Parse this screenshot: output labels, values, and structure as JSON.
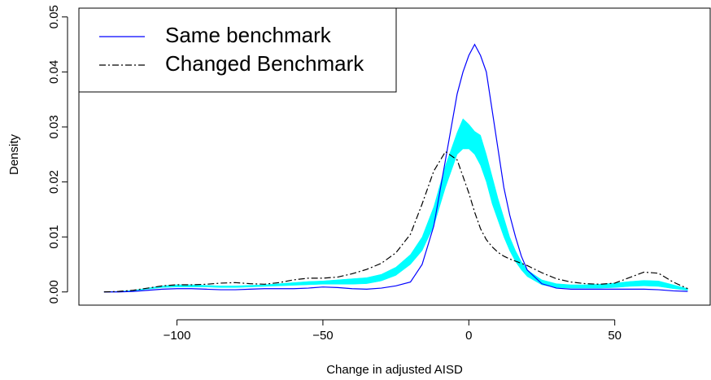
{
  "chart_data": {
    "type": "line",
    "x_label": "Change in adjusted AISD",
    "y_label": "Density",
    "x": [
      -125,
      -120,
      -115,
      -110,
      -105,
      -100,
      -95,
      -90,
      -85,
      -80,
      -75,
      -70,
      -65,
      -60,
      -55,
      -50,
      -45,
      -40,
      -35,
      -30,
      -25,
      -20,
      -16,
      -12,
      -8,
      -4,
      -2,
      0,
      2,
      4,
      6,
      8,
      10,
      12,
      14,
      16,
      18,
      20,
      25,
      30,
      35,
      40,
      45,
      50,
      55,
      60,
      65,
      70,
      75
    ],
    "series": [
      {
        "name": "Same benchmark",
        "color": "#0000ff",
        "dash": "solid",
        "values": [
          0,
          0,
          0.0001,
          0.0003,
          0.0005,
          0.0006,
          0.0006,
          0.0005,
          0.0004,
          0.0004,
          0.0005,
          0.0006,
          0.0006,
          0.0006,
          0.0007,
          0.0009,
          0.0008,
          0.0006,
          0.0005,
          0.0007,
          0.0011,
          0.0018,
          0.005,
          0.012,
          0.024,
          0.036,
          0.04,
          0.043,
          0.045,
          0.043,
          0.04,
          0.033,
          0.026,
          0.019,
          0.014,
          0.01,
          0.0065,
          0.004,
          0.0015,
          0.0007,
          0.0005,
          0.0005,
          0.0005,
          0.0005,
          0.0005,
          0.0005,
          0.0004,
          0.0002,
          0.0001
        ]
      },
      {
        "name": "Changed Benchmark",
        "color": "#000000",
        "dash": "dotdash",
        "values": [
          0,
          0.0001,
          0.0003,
          0.0007,
          0.0011,
          0.0013,
          0.0013,
          0.0014,
          0.0016,
          0.0017,
          0.0015,
          0.0014,
          0.0017,
          0.0022,
          0.0025,
          0.0025,
          0.0027,
          0.0033,
          0.0041,
          0.0052,
          0.0071,
          0.0105,
          0.016,
          0.022,
          0.0255,
          0.024,
          0.021,
          0.018,
          0.0145,
          0.0115,
          0.0095,
          0.0082,
          0.0072,
          0.0065,
          0.006,
          0.0056,
          0.0052,
          0.0048,
          0.0035,
          0.0024,
          0.0018,
          0.0015,
          0.0014,
          0.0016,
          0.0026,
          0.0036,
          0.0034,
          0.0018,
          0.0006
        ]
      }
    ],
    "band": {
      "color": "#00ffff",
      "lower": [
        0,
        0,
        0.0002,
        0.0005,
        0.0008,
        0.0009,
        0.0009,
        0.0009,
        0.0008,
        0.0008,
        0.0009,
        0.001,
        0.0011,
        0.0012,
        0.0013,
        0.0014,
        0.0014,
        0.0014,
        0.0015,
        0.002,
        0.003,
        0.005,
        0.0075,
        0.012,
        0.019,
        0.025,
        0.026,
        0.026,
        0.025,
        0.023,
        0.02,
        0.016,
        0.013,
        0.01,
        0.0075,
        0.0055,
        0.004,
        0.0028,
        0.0013,
        0.0008,
        0.0007,
        0.0007,
        0.0007,
        0.0008,
        0.001,
        0.0011,
        0.001,
        0.0006,
        0.0003
      ],
      "upper": [
        0,
        0.0001,
        0.0003,
        0.0007,
        0.0011,
        0.0013,
        0.0013,
        0.0012,
        0.0011,
        0.0011,
        0.0012,
        0.0013,
        0.0015,
        0.0017,
        0.0019,
        0.002,
        0.0022,
        0.0024,
        0.0026,
        0.0032,
        0.0045,
        0.0068,
        0.01,
        0.0155,
        0.023,
        0.029,
        0.0315,
        0.0305,
        0.0292,
        0.0285,
        0.025,
        0.021,
        0.017,
        0.0135,
        0.01,
        0.0075,
        0.0055,
        0.004,
        0.0022,
        0.0015,
        0.0013,
        0.0013,
        0.0014,
        0.0016,
        0.0019,
        0.0021,
        0.002,
        0.0013,
        0.0006
      ]
    },
    "xlim": [
      -133.6,
      82.7
    ],
    "ylim": [
      -0.0024,
      0.0516
    ],
    "xticks": [
      {
        "value": -100,
        "label": "−100"
      },
      {
        "value": -50,
        "label": "−50"
      },
      0,
      50
    ],
    "yticks": [
      {
        "value": 0,
        "label": "0.00"
      },
      {
        "value": 0.01,
        "label": "0.01"
      },
      {
        "value": 0.02,
        "label": "0.02"
      },
      {
        "value": 0.03,
        "label": "0.03"
      },
      {
        "value": 0.04,
        "label": "0.04"
      },
      {
        "value": 0.05,
        "label": "0.05"
      }
    ],
    "legend": "top-left"
  }
}
